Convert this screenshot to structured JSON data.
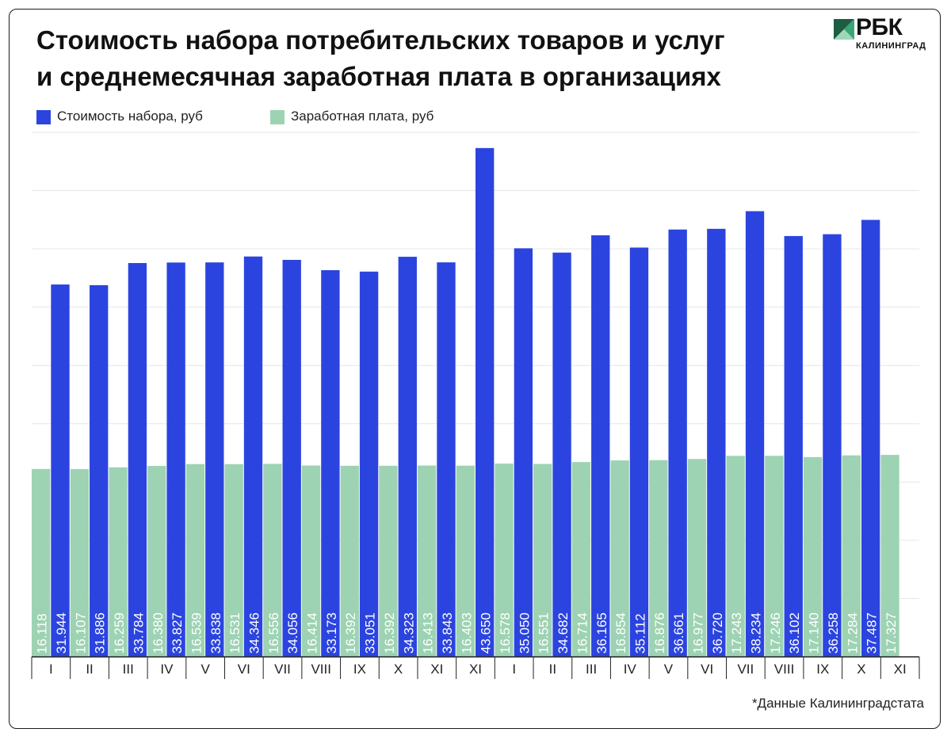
{
  "title_line1": "Стоимость набора потребительских товаров и услуг",
  "title_line2": "и среднемесячная заработная плата в организациях",
  "logo": {
    "name": "РБК",
    "sub": "КАЛИНИНГРАД",
    "colors": [
      "#1e5d43",
      "#3aa577",
      "#9fd8b6"
    ]
  },
  "footnote": "*Данные Калининградстата",
  "colors": {
    "cost": "#2b44e0",
    "salary": "#9dd3b3",
    "grid": "#e6e6e6",
    "axis": "#222222",
    "label": "#ffffff"
  },
  "chart_data": {
    "type": "bar",
    "legend": "top-left",
    "grid": true,
    "ylim": [
      0,
      45000
    ],
    "categories": [
      "I",
      "II",
      "III",
      "IV",
      "V",
      "VI",
      "VII",
      "VIII",
      "IX",
      "X",
      "XI",
      "XI",
      "I",
      "II",
      "III",
      "IV",
      "V",
      "VI",
      "VII",
      "VIII",
      "IX",
      "X",
      "XI"
    ],
    "series": [
      {
        "name": "Стоимость набора, руб",
        "key": "cost",
        "values": [
          31944,
          31886,
          33784,
          33827,
          33838,
          34346,
          34056,
          33173,
          33051,
          34323,
          33843,
          43650,
          35050,
          34682,
          36165,
          35112,
          36661,
          36720,
          38234,
          36102,
          36258,
          37487,
          null
        ],
        "labels": [
          "31.944",
          "31.886",
          "33.784",
          "33.827",
          "33.838",
          "34.346",
          "34.056",
          "33.173",
          "33.051",
          "34.323",
          "33.843",
          "43.650",
          "35.050",
          "34.682",
          "36.165",
          "35.112",
          "36.661",
          "36.720",
          "38.234",
          "36.102",
          "36.258",
          "37.487",
          ""
        ]
      },
      {
        "name": "Заработная плата, руб",
        "key": "salary",
        "values": [
          16118,
          16107,
          16259,
          16380,
          16539,
          16531,
          16556,
          16414,
          16392,
          16392,
          16413,
          16403,
          16578,
          16551,
          16714,
          16854,
          16876,
          16977,
          17243,
          17246,
          17140,
          17284,
          17327
        ],
        "labels": [
          "16.118",
          "16.107",
          "16.259",
          "16.380",
          "16.539",
          "16.531",
          "16.556",
          "16.414",
          "16.392",
          "16.392",
          "16.413",
          "16.403",
          "16.578",
          "16.551",
          "16.714",
          "16.854",
          "16.876",
          "16.977",
          "17.243",
          "17.246",
          "17.140",
          "17.284",
          "17.327"
        ]
      }
    ]
  }
}
